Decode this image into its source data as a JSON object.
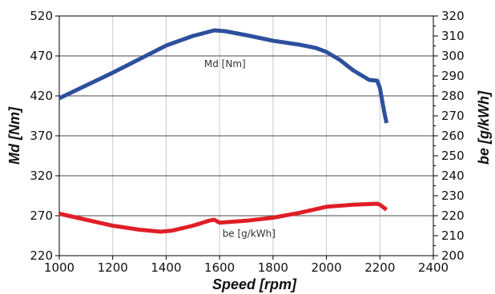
{
  "chart_data": {
    "type": "line",
    "xlabel": "Speed [rpm]",
    "ylabel": "Md [Nm]",
    "y2label": "be [g/kWh]",
    "xlim": [
      1000,
      2400
    ],
    "ylim": [
      220,
      520
    ],
    "y2lim": [
      200,
      320
    ],
    "x_ticks": [
      1000,
      1200,
      1400,
      1600,
      1800,
      2000,
      2200,
      2400
    ],
    "y_ticks": [
      220,
      270,
      320,
      370,
      420,
      470,
      520
    ],
    "y2_ticks": [
      200,
      210,
      220,
      230,
      240,
      250,
      260,
      270,
      280,
      290,
      300,
      310,
      320
    ],
    "grid": "vertical lines at x ticks, horizontal lines at left-axis ticks",
    "series": [
      {
        "name": "Md [Nm]",
        "axis": "left",
        "color": "#2d4f9e",
        "x": [
          1000,
          1100,
          1200,
          1300,
          1400,
          1500,
          1580,
          1620,
          1700,
          1800,
          1900,
          1960,
          2000,
          2050,
          2100,
          2160,
          2190,
          2200,
          2215,
          2225
        ],
        "y": [
          417,
          433,
          449,
          466,
          483,
          495,
          502,
          501,
          496,
          489,
          484,
          480,
          475,
          465,
          452,
          440,
          439,
          430,
          402,
          386
        ]
      },
      {
        "name": "be [g/kWh]",
        "axis": "right",
        "color": "#e01e26",
        "x": [
          1000,
          1100,
          1200,
          1300,
          1380,
          1420,
          1500,
          1560,
          1580,
          1600,
          1700,
          1800,
          1900,
          2000,
          2100,
          2190,
          2200,
          2225
        ],
        "y": [
          221,
          218,
          215,
          213,
          212,
          212.5,
          215,
          217.5,
          218,
          216.5,
          217.5,
          219,
          221.5,
          224.5,
          225.5,
          226,
          225.5,
          223
        ]
      }
    ]
  }
}
